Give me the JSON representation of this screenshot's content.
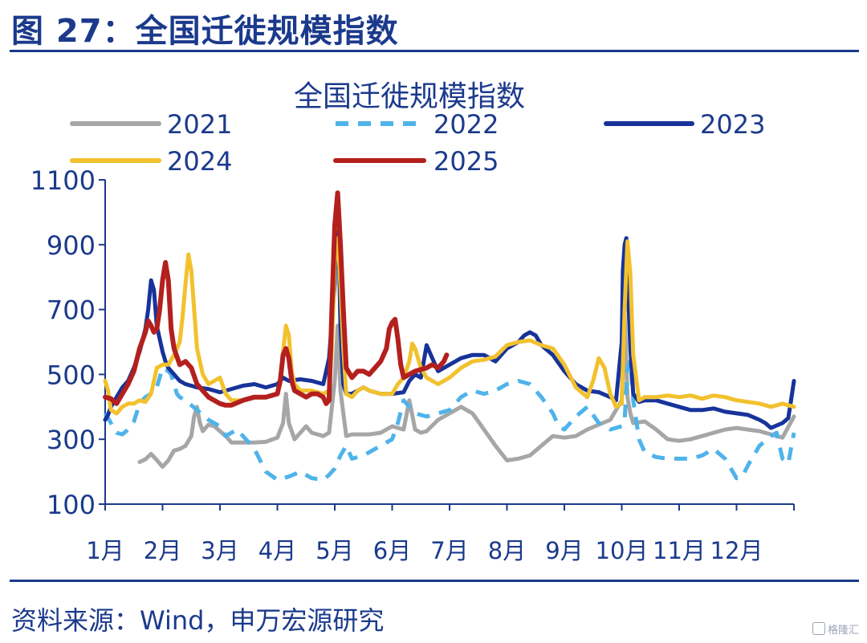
{
  "figure": {
    "title": "图 27：全国迁徙规模指数",
    "source": "资料来源：Wind，申万宏源研究",
    "watermark": "格隆汇"
  },
  "colors": {
    "accent": "#1b3a8c",
    "s2021": "#a6a6a6",
    "s2022": "#4fb3ea",
    "s2023": "#17339a",
    "s2024": "#f2c12e",
    "s2025": "#b3201e"
  },
  "chart_data": {
    "type": "line",
    "title": "全国迁徙规模指数",
    "xlabel": "",
    "ylabel": "",
    "x_range": [
      1,
      13
    ],
    "ylim": [
      100,
      1100
    ],
    "y_ticks": [
      100,
      300,
      500,
      700,
      900,
      1100
    ],
    "x_ticks": [
      {
        "label": "1月",
        "x": 1
      },
      {
        "label": "2月",
        "x": 2
      },
      {
        "label": "3月",
        "x": 3
      },
      {
        "label": "4月",
        "x": 4
      },
      {
        "label": "5月",
        "x": 5
      },
      {
        "label": "6月",
        "x": 6
      },
      {
        "label": "7月",
        "x": 7
      },
      {
        "label": "8月",
        "x": 8
      },
      {
        "label": "9月",
        "x": 9
      },
      {
        "label": "10月",
        "x": 10
      },
      {
        "label": "11月",
        "x": 11
      },
      {
        "label": "12月",
        "x": 12
      }
    ],
    "legend": "top",
    "grid": false,
    "series": [
      {
        "name": "2021",
        "color": "#a6a6a6",
        "dash": false,
        "x": [
          1.6,
          1.7,
          1.8,
          1.9,
          2.0,
          2.1,
          2.2,
          2.3,
          2.4,
          2.5,
          2.55,
          2.6,
          2.65,
          2.7,
          2.8,
          2.9,
          3.0,
          3.1,
          3.2,
          3.4,
          3.6,
          3.8,
          4.0,
          4.1,
          4.15,
          4.2,
          4.3,
          4.4,
          4.5,
          4.6,
          4.7,
          4.8,
          4.9,
          5.0,
          5.05,
          5.1,
          5.2,
          5.3,
          5.4,
          5.6,
          5.8,
          6.0,
          6.2,
          6.3,
          6.4,
          6.5,
          6.6,
          6.8,
          7.0,
          7.2,
          7.4,
          7.6,
          7.8,
          8.0,
          8.2,
          8.4,
          8.6,
          8.8,
          9.0,
          9.2,
          9.4,
          9.6,
          9.8,
          10.0,
          10.05,
          10.1,
          10.15,
          10.2,
          10.4,
          10.6,
          10.8,
          11.0,
          11.2,
          11.4,
          11.6,
          11.8,
          12.0,
          12.2,
          12.4,
          12.6,
          12.8,
          13.0
        ],
        "y": [
          230,
          238,
          255,
          236,
          215,
          235,
          265,
          270,
          280,
          310,
          370,
          400,
          350,
          325,
          345,
          340,
          325,
          310,
          290,
          290,
          290,
          292,
          305,
          350,
          440,
          350,
          300,
          320,
          340,
          320,
          315,
          310,
          320,
          480,
          650,
          450,
          310,
          315,
          315,
          315,
          320,
          340,
          330,
          420,
          330,
          320,
          325,
          360,
          380,
          400,
          380,
          330,
          280,
          235,
          240,
          250,
          280,
          310,
          305,
          310,
          330,
          345,
          360,
          420,
          680,
          430,
          380,
          350,
          355,
          330,
          300,
          295,
          300,
          310,
          320,
          330,
          335,
          330,
          325,
          315,
          305,
          370
        ]
      },
      {
        "name": "2022",
        "color": "#4fb3ea",
        "dash": true,
        "x": [
          1.0,
          1.1,
          1.2,
          1.3,
          1.4,
          1.5,
          1.6,
          1.7,
          1.8,
          1.9,
          2.0,
          2.1,
          2.15,
          2.2,
          2.25,
          2.3,
          2.4,
          2.6,
          2.8,
          3.0,
          3.1,
          3.2,
          3.3,
          3.4,
          3.5,
          3.6,
          3.8,
          4.0,
          4.2,
          4.4,
          4.6,
          4.8,
          4.9,
          5.0,
          5.1,
          5.2,
          5.3,
          5.5,
          5.7,
          5.9,
          6.0,
          6.1,
          6.2,
          6.4,
          6.6,
          6.8,
          7.0,
          7.2,
          7.4,
          7.6,
          7.8,
          8.0,
          8.2,
          8.4,
          8.6,
          8.8,
          8.9,
          9.0,
          9.2,
          9.4,
          9.6,
          9.8,
          10.0,
          10.05,
          10.1,
          10.15,
          10.2,
          10.3,
          10.4,
          10.6,
          10.8,
          11.0,
          11.2,
          11.4,
          11.6,
          11.8,
          12.0,
          12.1,
          12.2,
          12.4,
          12.6,
          12.7,
          12.8,
          12.9,
          13.0
        ],
        "y": [
          380,
          350,
          320,
          315,
          330,
          355,
          410,
          430,
          440,
          460,
          520,
          510,
          500,
          470,
          440,
          430,
          420,
          390,
          360,
          340,
          310,
          320,
          330,
          310,
          290,
          270,
          200,
          175,
          185,
          200,
          180,
          175,
          190,
          210,
          250,
          280,
          240,
          250,
          270,
          290,
          300,
          350,
          420,
          380,
          370,
          380,
          390,
          430,
          450,
          440,
          450,
          470,
          480,
          470,
          430,
          380,
          340,
          330,
          370,
          400,
          350,
          330,
          340,
          360,
          520,
          540,
          420,
          300,
          260,
          245,
          240,
          240,
          240,
          250,
          270,
          240,
          180,
          185,
          220,
          280,
          310,
          320,
          240,
          225,
          320
        ]
      },
      {
        "name": "2023",
        "color": "#17339a",
        "dash": false,
        "x": [
          1.0,
          1.05,
          1.1,
          1.2,
          1.3,
          1.4,
          1.5,
          1.6,
          1.7,
          1.75,
          1.8,
          1.85,
          1.9,
          2.0,
          2.05,
          2.1,
          2.2,
          2.3,
          2.4,
          2.5,
          2.6,
          2.8,
          3.0,
          3.2,
          3.4,
          3.6,
          3.8,
          4.0,
          4.1,
          4.2,
          4.4,
          4.6,
          4.8,
          4.9,
          5.0,
          5.02,
          5.05,
          5.08,
          5.1,
          5.15,
          5.2,
          5.3,
          5.4,
          5.5,
          5.6,
          5.8,
          6.0,
          6.2,
          6.3,
          6.4,
          6.5,
          6.6,
          6.7,
          6.8,
          7.0,
          7.2,
          7.4,
          7.6,
          7.8,
          8.0,
          8.2,
          8.3,
          8.4,
          8.5,
          8.6,
          8.8,
          9.0,
          9.2,
          9.4,
          9.6,
          9.8,
          9.9,
          10.0,
          10.02,
          10.05,
          10.08,
          10.1,
          10.15,
          10.2,
          10.3,
          10.4,
          10.6,
          10.8,
          11.0,
          11.2,
          11.4,
          11.6,
          11.8,
          12.0,
          12.2,
          12.4,
          12.5,
          12.6,
          12.8,
          12.9,
          12.95,
          13.0
        ],
        "y": [
          360,
          375,
          400,
          430,
          460,
          480,
          520,
          570,
          640,
          700,
          790,
          760,
          650,
          570,
          540,
          520,
          500,
          480,
          470,
          465,
          460,
          455,
          445,
          455,
          465,
          470,
          460,
          470,
          490,
          480,
          485,
          480,
          470,
          550,
          780,
          920,
          940,
          820,
          650,
          470,
          440,
          440,
          450,
          460,
          450,
          440,
          440,
          445,
          480,
          500,
          490,
          590,
          550,
          510,
          530,
          550,
          560,
          560,
          540,
          580,
          600,
          620,
          630,
          620,
          590,
          560,
          510,
          470,
          450,
          445,
          430,
          420,
          600,
          820,
          900,
          920,
          800,
          580,
          440,
          415,
          420,
          420,
          410,
          400,
          390,
          390,
          395,
          385,
          380,
          375,
          360,
          350,
          335,
          350,
          365,
          420,
          480
        ]
      },
      {
        "name": "2024",
        "color": "#f2c12e",
        "dash": false,
        "x": [
          1.0,
          1.05,
          1.1,
          1.2,
          1.3,
          1.4,
          1.5,
          1.6,
          1.7,
          1.8,
          1.9,
          2.0,
          2.1,
          2.2,
          2.3,
          2.35,
          2.4,
          2.45,
          2.5,
          2.6,
          2.7,
          2.8,
          2.9,
          3.0,
          3.1,
          3.2,
          3.4,
          3.6,
          3.8,
          4.0,
          4.05,
          4.1,
          4.15,
          4.2,
          4.25,
          4.3,
          4.4,
          4.6,
          4.8,
          4.9,
          4.95,
          5.0,
          5.05,
          5.1,
          5.15,
          5.2,
          5.3,
          5.4,
          5.5,
          5.6,
          5.8,
          6.0,
          6.1,
          6.2,
          6.3,
          6.35,
          6.4,
          6.5,
          6.6,
          6.8,
          7.0,
          7.2,
          7.4,
          7.6,
          7.8,
          8.0,
          8.2,
          8.4,
          8.6,
          8.8,
          9.0,
          9.2,
          9.4,
          9.5,
          9.6,
          9.7,
          9.8,
          9.9,
          10.0,
          10.05,
          10.1,
          10.15,
          10.2,
          10.3,
          10.4,
          10.6,
          10.8,
          11.0,
          11.2,
          11.4,
          11.6,
          11.8,
          12.0,
          12.2,
          12.4,
          12.6,
          12.8,
          13.0
        ],
        "y": [
          480,
          450,
          390,
          380,
          400,
          410,
          410,
          420,
          415,
          440,
          520,
          530,
          530,
          560,
          600,
          680,
          780,
          870,
          820,
          580,
          500,
          470,
          480,
          490,
          440,
          420,
          420,
          430,
          430,
          440,
          480,
          570,
          650,
          620,
          510,
          470,
          450,
          450,
          440,
          450,
          580,
          850,
          920,
          780,
          580,
          440,
          430,
          450,
          460,
          450,
          440,
          440,
          470,
          490,
          540,
          595,
          580,
          520,
          490,
          470,
          490,
          520,
          540,
          545,
          555,
          590,
          600,
          605,
          590,
          580,
          530,
          460,
          430,
          480,
          550,
          520,
          440,
          400,
          410,
          700,
          910,
          810,
          560,
          420,
          430,
          430,
          435,
          430,
          435,
          425,
          435,
          430,
          420,
          415,
          410,
          400,
          410,
          400
        ]
      },
      {
        "name": "2025",
        "color": "#b3201e",
        "dash": false,
        "x": [
          1.0,
          1.1,
          1.2,
          1.3,
          1.4,
          1.5,
          1.6,
          1.7,
          1.75,
          1.8,
          1.85,
          1.9,
          1.95,
          2.0,
          2.05,
          2.1,
          2.15,
          2.2,
          2.3,
          2.4,
          2.5,
          2.6,
          2.7,
          2.8,
          2.9,
          3.0,
          3.1,
          3.2,
          3.4,
          3.6,
          3.8,
          4.0,
          4.05,
          4.1,
          4.15,
          4.2,
          4.25,
          4.3,
          4.4,
          4.5,
          4.6,
          4.7,
          4.8,
          4.85,
          4.9,
          4.95,
          5.0,
          5.05,
          5.1,
          5.15,
          5.2,
          5.3,
          5.4,
          5.5,
          5.6,
          5.7,
          5.8,
          5.9,
          5.95,
          6.0,
          6.05,
          6.1,
          6.15,
          6.2,
          6.3,
          6.4,
          6.5,
          6.6,
          6.7,
          6.8,
          6.9,
          6.95
        ],
        "y": [
          430,
          425,
          410,
          440,
          470,
          510,
          580,
          630,
          665,
          650,
          630,
          640,
          700,
          790,
          845,
          790,
          640,
          580,
          530,
          540,
          520,
          470,
          450,
          430,
          420,
          410,
          405,
          405,
          420,
          430,
          430,
          440,
          480,
          560,
          580,
          550,
          480,
          450,
          440,
          430,
          440,
          440,
          430,
          410,
          420,
          700,
          960,
          1060,
          900,
          700,
          520,
          490,
          510,
          510,
          500,
          520,
          540,
          580,
          640,
          660,
          670,
          610,
          530,
          490,
          500,
          510,
          515,
          520,
          530,
          520,
          540,
          560
        ]
      }
    ]
  }
}
